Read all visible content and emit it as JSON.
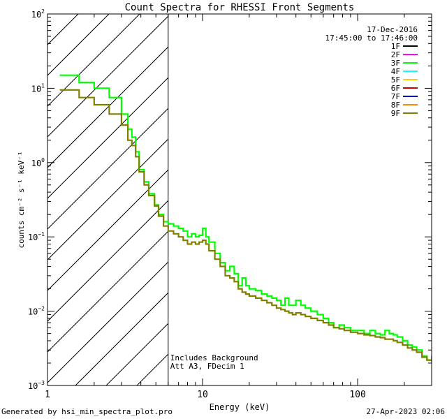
{
  "chart_data": {
    "type": "line",
    "title": "Count Spectra for RHESSI Front Segments",
    "date": "17-Dec-2016",
    "time_range": "17:45:00 to 17:46:00",
    "xlabel": "Energy (keV)",
    "ylabel": "counts cm⁻² s⁻¹ keV⁻¹",
    "xscale": "log",
    "yscale": "log",
    "xlim": [
      1,
      300
    ],
    "ylim": [
      0.001,
      100
    ],
    "x_ticks": [
      {
        "value": 1,
        "label": "1"
      },
      {
        "value": 10,
        "label": "10"
      },
      {
        "value": 100,
        "label": "100"
      }
    ],
    "y_ticks": [
      {
        "value": 0.001,
        "mant": "10",
        "exp": "−3"
      },
      {
        "value": 0.01,
        "mant": "10",
        "exp": "−2"
      },
      {
        "value": 0.1,
        "mant": "10",
        "exp": "−1"
      },
      {
        "value": 1,
        "mant": "10",
        "exp": "0"
      },
      {
        "value": 10,
        "mant": "10",
        "exp": "1"
      },
      {
        "value": 100,
        "mant": "10",
        "exp": "2"
      }
    ],
    "hatched_region": {
      "x_from": 1,
      "x_to": 6
    },
    "annotations": [
      "Includes Background",
      "Att A3, FDecim 1"
    ],
    "legend": [
      {
        "label": "1F",
        "color": "#000000"
      },
      {
        "label": "2F",
        "color": "#ff00ff"
      },
      {
        "label": "3F",
        "color": "#00ff00"
      },
      {
        "label": "4F",
        "color": "#00ffff"
      },
      {
        "label": "5F",
        "color": "#ffcc00"
      },
      {
        "label": "6F",
        "color": "#cc0000"
      },
      {
        "label": "7F",
        "color": "#0000cc"
      },
      {
        "label": "8F",
        "color": "#ff8800"
      },
      {
        "label": "9F",
        "color": "#808000"
      }
    ],
    "series": [
      {
        "name": "3F",
        "color": "#00ff00",
        "points": [
          [
            1.2,
            15
          ],
          [
            1.4,
            15
          ],
          [
            1.6,
            12
          ],
          [
            1.8,
            12
          ],
          [
            2.0,
            10
          ],
          [
            2.25,
            10
          ],
          [
            2.5,
            7.5
          ],
          [
            2.8,
            7.5
          ],
          [
            3.0,
            4.5
          ],
          [
            3.3,
            2.8
          ],
          [
            3.5,
            2.2
          ],
          [
            3.7,
            1.4
          ],
          [
            3.9,
            0.8
          ],
          [
            4.2,
            0.55
          ],
          [
            4.5,
            0.38
          ],
          [
            4.9,
            0.27
          ],
          [
            5.2,
            0.2
          ],
          [
            5.6,
            0.16
          ],
          [
            6.0,
            0.15
          ],
          [
            6.5,
            0.14
          ],
          [
            7.0,
            0.13
          ],
          [
            7.5,
            0.12
          ],
          [
            8.0,
            0.1
          ],
          [
            8.5,
            0.11
          ],
          [
            9.0,
            0.1
          ],
          [
            9.5,
            0.105
          ],
          [
            10.0,
            0.13
          ],
          [
            10.5,
            0.1
          ],
          [
            11.0,
            0.085
          ],
          [
            12.0,
            0.06
          ],
          [
            13.0,
            0.045
          ],
          [
            14.0,
            0.035
          ],
          [
            15.0,
            0.04
          ],
          [
            16.0,
            0.032
          ],
          [
            17.0,
            0.022
          ],
          [
            18.0,
            0.028
          ],
          [
            19.0,
            0.022
          ],
          [
            20.0,
            0.02
          ],
          [
            22.0,
            0.019
          ],
          [
            24.0,
            0.017
          ],
          [
            26.0,
            0.016
          ],
          [
            28.0,
            0.015
          ],
          [
            30.0,
            0.014
          ],
          [
            32.0,
            0.012
          ],
          [
            34.0,
            0.015
          ],
          [
            36.0,
            0.012
          ],
          [
            38.0,
            0.012
          ],
          [
            40.0,
            0.014
          ],
          [
            43.0,
            0.012
          ],
          [
            46.0,
            0.011
          ],
          [
            50.0,
            0.01
          ],
          [
            55.0,
            0.009
          ],
          [
            60.0,
            0.008
          ],
          [
            65.0,
            0.007
          ],
          [
            70.0,
            0.006
          ],
          [
            76.0,
            0.0065
          ],
          [
            82.0,
            0.006
          ],
          [
            90.0,
            0.0055
          ],
          [
            100.0,
            0.0055
          ],
          [
            110.0,
            0.005
          ],
          [
            120.0,
            0.0055
          ],
          [
            130.0,
            0.005
          ],
          [
            140.0,
            0.0048
          ],
          [
            150.0,
            0.0055
          ],
          [
            160.0,
            0.005
          ],
          [
            170.0,
            0.0048
          ],
          [
            180.0,
            0.0045
          ],
          [
            195.0,
            0.004
          ],
          [
            210.0,
            0.0035
          ],
          [
            225.0,
            0.0033
          ],
          [
            240.0,
            0.003
          ],
          [
            260.0,
            0.0025
          ],
          [
            280.0,
            0.0022
          ],
          [
            300.0,
            0.0025
          ]
        ]
      },
      {
        "name": "9F",
        "color": "#808000",
        "points": [
          [
            1.2,
            9.5
          ],
          [
            1.4,
            9.5
          ],
          [
            1.6,
            7.5
          ],
          [
            1.8,
            7.5
          ],
          [
            2.0,
            6.0
          ],
          [
            2.25,
            6.0
          ],
          [
            2.5,
            4.5
          ],
          [
            2.8,
            4.5
          ],
          [
            3.0,
            3.2
          ],
          [
            3.3,
            2.0
          ],
          [
            3.5,
            1.7
          ],
          [
            3.7,
            1.2
          ],
          [
            3.9,
            0.75
          ],
          [
            4.2,
            0.5
          ],
          [
            4.5,
            0.36
          ],
          [
            4.9,
            0.26
          ],
          [
            5.2,
            0.19
          ],
          [
            5.6,
            0.14
          ],
          [
            6.0,
            0.12
          ],
          [
            6.5,
            0.11
          ],
          [
            7.0,
            0.1
          ],
          [
            7.5,
            0.09
          ],
          [
            8.0,
            0.08
          ],
          [
            8.5,
            0.085
          ],
          [
            9.0,
            0.08
          ],
          [
            9.5,
            0.085
          ],
          [
            10.0,
            0.09
          ],
          [
            10.5,
            0.08
          ],
          [
            11.0,
            0.065
          ],
          [
            12.0,
            0.05
          ],
          [
            13.0,
            0.04
          ],
          [
            14.0,
            0.03
          ],
          [
            15.0,
            0.028
          ],
          [
            16.0,
            0.025
          ],
          [
            17.0,
            0.02
          ],
          [
            18.0,
            0.018
          ],
          [
            19.0,
            0.017
          ],
          [
            20.0,
            0.016
          ],
          [
            22.0,
            0.015
          ],
          [
            24.0,
            0.014
          ],
          [
            26.0,
            0.013
          ],
          [
            28.0,
            0.012
          ],
          [
            30.0,
            0.011
          ],
          [
            32.0,
            0.0105
          ],
          [
            34.0,
            0.01
          ],
          [
            36.0,
            0.0095
          ],
          [
            38.0,
            0.009
          ],
          [
            40.0,
            0.0095
          ],
          [
            43.0,
            0.009
          ],
          [
            46.0,
            0.0085
          ],
          [
            50.0,
            0.008
          ],
          [
            55.0,
            0.0075
          ],
          [
            60.0,
            0.007
          ],
          [
            65.0,
            0.0065
          ],
          [
            70.0,
            0.006
          ],
          [
            76.0,
            0.0058
          ],
          [
            82.0,
            0.0055
          ],
          [
            90.0,
            0.0052
          ],
          [
            100.0,
            0.005
          ],
          [
            110.0,
            0.0048
          ],
          [
            120.0,
            0.0047
          ],
          [
            130.0,
            0.0045
          ],
          [
            140.0,
            0.0044
          ],
          [
            150.0,
            0.0042
          ],
          [
            160.0,
            0.0042
          ],
          [
            170.0,
            0.004
          ],
          [
            180.0,
            0.0038
          ],
          [
            195.0,
            0.0035
          ],
          [
            210.0,
            0.0032
          ],
          [
            225.0,
            0.003
          ],
          [
            240.0,
            0.0028
          ],
          [
            260.0,
            0.0024
          ],
          [
            280.0,
            0.0022
          ],
          [
            300.0,
            0.0021
          ]
        ]
      }
    ]
  },
  "footer": {
    "generated_by": "Generated by hsi_min_spectra_plot.pro",
    "timestamp": "27-Apr-2023 02:06"
  }
}
